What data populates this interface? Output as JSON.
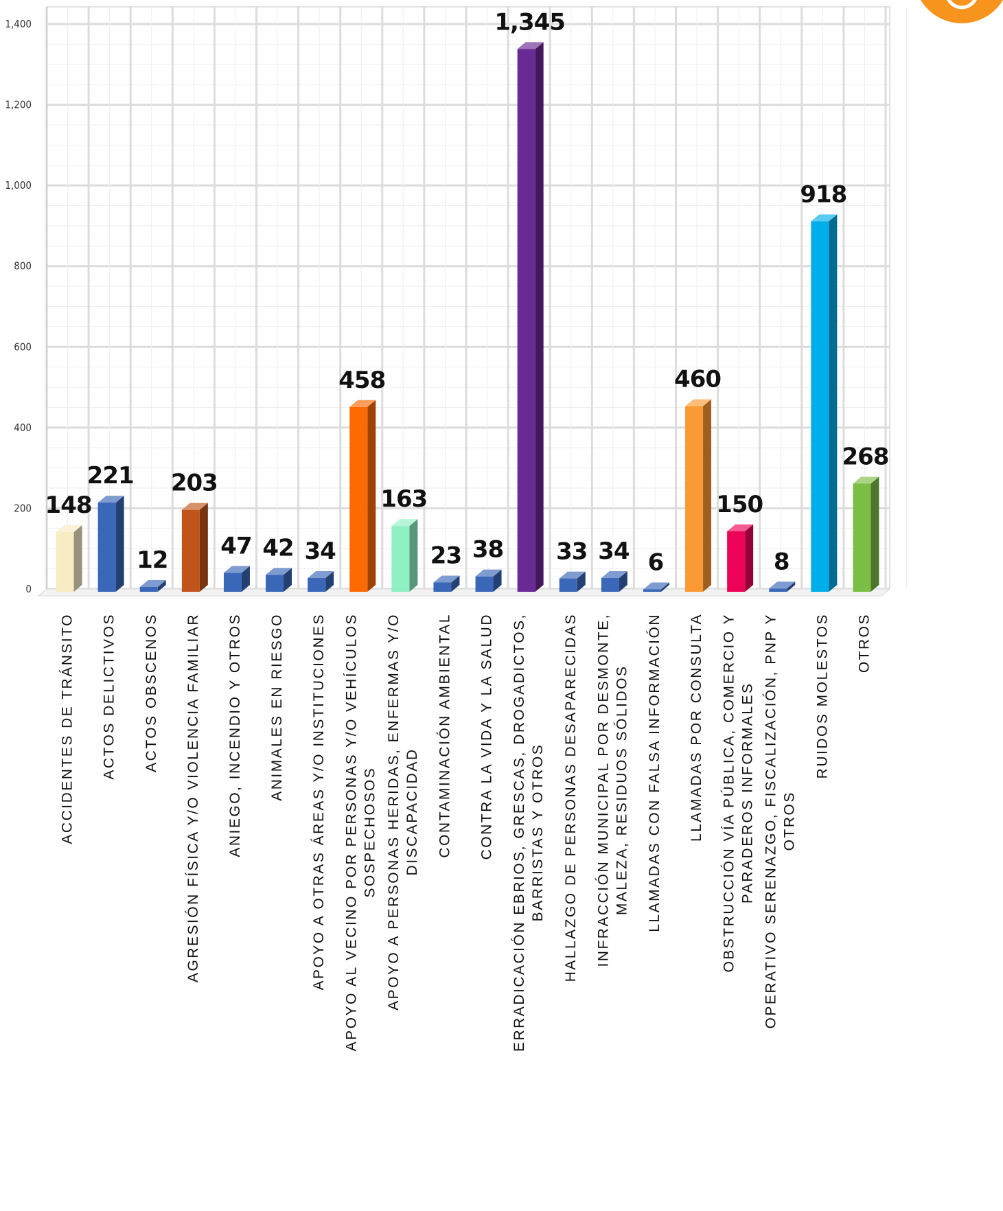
{
  "chart_data": {
    "type": "bar",
    "title": "",
    "xlabel": "",
    "ylabel": "",
    "ylim": [
      0,
      1400
    ],
    "y_ticks": [
      "0",
      "200",
      "400",
      "600",
      "800",
      "1,000",
      "1,200",
      "1,400"
    ],
    "grid": true,
    "categories": [
      [
        "ACCIDENTES DE TRÁNSITO"
      ],
      [
        "ACTOS DELICTIVOS"
      ],
      [
        "ACTOS OBSCENOS"
      ],
      [
        "AGRESIÓN FÍSICA Y/O VIOLENCIA FAMILIAR"
      ],
      [
        "ANIEGO, INCENDIO Y OTROS"
      ],
      [
        "ANIMALES EN RIESGO"
      ],
      [
        "APOYO A OTRAS ÁREAS Y/O INSTITUCIONES"
      ],
      [
        "APOYO AL VECINO POR PERSONAS Y/O VEHÍCULOS",
        "SOSPECHOSOS"
      ],
      [
        "APOYO A PERSONAS HERIDAS, ENFERMAS Y/O",
        "DISCAPACIDAD"
      ],
      [
        "CONTAMINACIÓN AMBIENTAL"
      ],
      [
        "CONTRA  LA VIDA Y LA SALUD"
      ],
      [
        "ERRADICACIÓN EBRIOS, GRESCAS, DROGADICTOS,",
        "BARRISTAS Y OTROS"
      ],
      [
        "HALLAZGO DE PERSONAS DESAPARECIDAS"
      ],
      [
        "INFRACCIÓN MUNICIPAL POR DESMONTE,",
        "MALEZA, RESIDUOS SÓLIDOS"
      ],
      [
        "LLAMADAS CON FALSA INFORMACIÓN"
      ],
      [
        "LLAMADAS POR CONSULTA"
      ],
      [
        "OBSTRUCCIÓN VÍA PÚBLICA, COMERCIO Y",
        "PARADEROS INFORMALES"
      ],
      [
        "OPERATIVO  SERENAZGO, FISCALIZACIÓN, PNP Y",
        "OTROS"
      ],
      [
        "RUIDOS MOLESTOS"
      ],
      [
        "OTROS"
      ]
    ],
    "values": [
      148,
      221,
      12,
      203,
      47,
      42,
      34,
      458,
      163,
      23,
      38,
      1345,
      33,
      34,
      6,
      460,
      150,
      8,
      918,
      268
    ],
    "value_labels": [
      "148",
      "221",
      "12",
      "203",
      "47",
      "42",
      "34",
      "458",
      "163",
      "23",
      "38",
      "1,345",
      "33",
      "34",
      "6",
      "460",
      "150",
      "8",
      "918",
      "268"
    ],
    "colors": [
      "#f7ecc4",
      "#3a67b8",
      "#3a67b8",
      "#c0541a",
      "#3a67b8",
      "#3a67b8",
      "#3a67b8",
      "#fd6a02",
      "#8ef0c3",
      "#3a67b8",
      "#3a67b8",
      "#6a2a94",
      "#3a67b8",
      "#3a67b8",
      "#3a67b8",
      "#fb9a34",
      "#ee0257",
      "#3a67b8",
      "#00aeea",
      "#7cbe45"
    ]
  },
  "logo": {
    "color": "#f7941d"
  }
}
